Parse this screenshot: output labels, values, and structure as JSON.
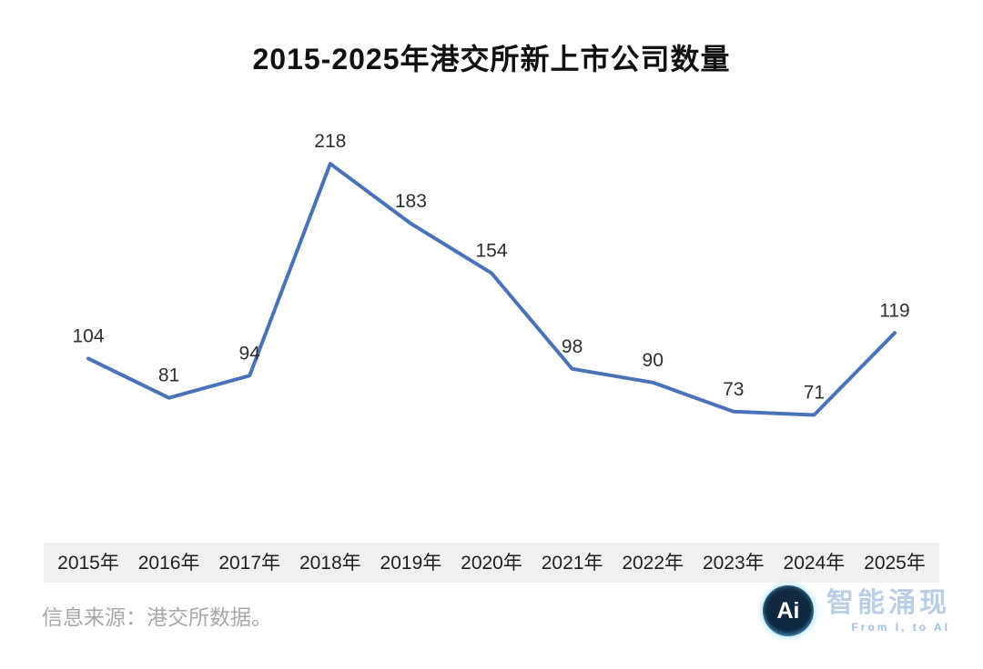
{
  "title": "2015-2025年港交所新上市公司数量",
  "source": "信息来源：港交所数据。",
  "watermark": {
    "logo_text": "Ai",
    "brand": "智能涌现",
    "tagline": "From I, to AI"
  },
  "chart_data": {
    "type": "line",
    "title": "2015-2025年港交所新上市公司数量",
    "categories": [
      "2015年",
      "2016年",
      "2017年",
      "2018年",
      "2019年",
      "2020年",
      "2021年",
      "2022年",
      "2023年",
      "2024年",
      "2025年"
    ],
    "values": [
      104,
      81,
      94,
      218,
      183,
      154,
      98,
      90,
      73,
      71,
      119
    ],
    "xlabel": "",
    "ylabel": "",
    "ylim": [
      0,
      250
    ],
    "grid": false,
    "legend": false,
    "data_labels": true,
    "line_color": "#4a72b8",
    "axis_band_color": "#f0f0f0"
  }
}
